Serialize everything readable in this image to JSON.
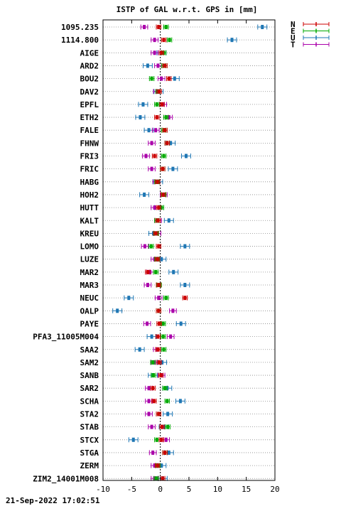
{
  "chart_data": {
    "type": "scatter",
    "title": "ISTP of GAL w.r.t. GPS in [mm]",
    "timestamp": "21-Sep-2022 17:02:51",
    "xlim": [
      -10,
      20
    ],
    "xticks": [
      -10,
      -5,
      0,
      5,
      10,
      15,
      20
    ],
    "sites": [
      "1095.235",
      "1114.800",
      "AIGE",
      "ARD2",
      "BOU2",
      "DAV2",
      "EPFL",
      "ETH2",
      "FALE",
      "FHNW",
      "FRI3",
      "FRIC",
      "HABG",
      "HOH2",
      "HUTT",
      "KALT",
      "KREU",
      "LOMO",
      "LUZE",
      "MAR2",
      "MAR3",
      "NEUC",
      "OALP",
      "PAYE",
      "PFA3_11005M004",
      "SAA2",
      "SAM2",
      "SANB",
      "SAR2",
      "SCHA",
      "STA2",
      "STAB",
      "STCX",
      "STGA",
      "ZERM",
      "ZIM2_14001M008"
    ],
    "series": [
      {
        "name": "N",
        "color": "#cc0000",
        "values": [
          -0.3,
          0.6,
          0.2,
          0.8,
          1.5,
          -0.2,
          0.3,
          -0.6,
          0.8,
          1.2,
          -1.0,
          0.4,
          -0.5,
          0.5,
          -0.3,
          -0.4,
          -0.8,
          -0.3,
          -0.5,
          -2.2,
          -0.3,
          4.3,
          -0.3,
          -0.2,
          -0.4,
          -0.4,
          -0.2,
          0.1,
          -1.3,
          -1.1,
          -0.3,
          0.3,
          0.2,
          0.8,
          -0.5,
          0.4
        ],
        "err": 0.4
      },
      {
        "name": "E",
        "color": "#00aa00",
        "values": [
          1.0,
          1.6,
          0.6,
          0.6,
          -1.5,
          -0.4,
          -0.6,
          1.0,
          0.6,
          1.2,
          0.6,
          0.4,
          -0.6,
          0.6,
          0.2,
          -0.6,
          -0.7,
          -1.6,
          -0.6,
          -0.8,
          -0.2,
          1.0,
          -0.3,
          0.5,
          0.5,
          0.6,
          -1.3,
          -1.2,
          0.8,
          1.2,
          -0.3,
          1.3,
          -0.6,
          0.8,
          -0.4,
          -0.7
        ],
        "err": 0.4
      },
      {
        "name": "U",
        "color": "#1f77b4",
        "values": [
          17.8,
          12.5,
          0.2,
          -2.2,
          2.5,
          -0.3,
          -3.0,
          -3.5,
          -2.0,
          1.8,
          4.5,
          2.2,
          -0.4,
          -2.8,
          -0.2,
          1.5,
          -1.2,
          4.3,
          0.2,
          2.3,
          4.3,
          -5.5,
          -7.5,
          3.6,
          -1.5,
          -3.6,
          0.3,
          -1.3,
          1.2,
          3.5,
          1.3,
          0.6,
          -4.7,
          1.5,
          0.2,
          0.4
        ],
        "err": 0.8
      },
      {
        "name": "T",
        "color": "#aa00aa",
        "values": [
          -2.8,
          -1.0,
          -1.0,
          -0.4,
          0.2,
          -0.6,
          0.5,
          1.5,
          -0.8,
          -1.5,
          -2.5,
          -1.5,
          -0.7,
          0.6,
          -1.0,
          -0.4,
          -0.5,
          -2.7,
          -1.0,
          -1.8,
          -2.2,
          -0.3,
          2.2,
          -2.3,
          1.8,
          -0.6,
          -1.0,
          0.2,
          -2.0,
          -2.0,
          -2.0,
          -1.5,
          1.0,
          -1.3,
          -1.0,
          -1.0
        ],
        "err": 0.6
      }
    ]
  }
}
